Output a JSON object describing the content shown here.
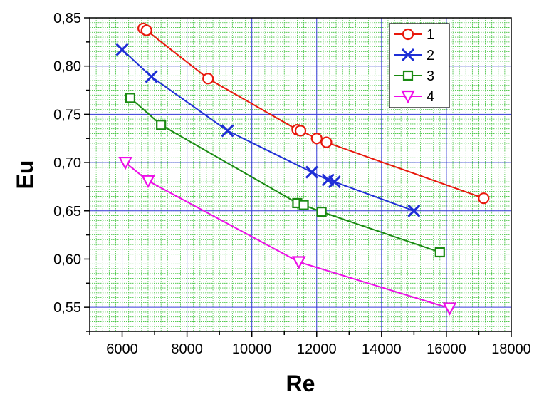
{
  "chart_data": {
    "type": "line",
    "xlabel": "Re",
    "ylabel": "Eu",
    "xlim": [
      5000,
      18000
    ],
    "ylim": [
      0.525,
      0.85
    ],
    "x_ticks": [
      6000,
      8000,
      10000,
      12000,
      14000,
      16000,
      18000
    ],
    "x_tick_labels": [
      "6000",
      "8000",
      "10000",
      "12000",
      "14000",
      "16000",
      "18000"
    ],
    "y_ticks": [
      0.55,
      0.6,
      0.65,
      0.7,
      0.75,
      0.8,
      0.85
    ],
    "y_tick_labels": [
      "0,55",
      "0,60",
      "0,65",
      "0,70",
      "0,75",
      "0,80",
      "0,85"
    ],
    "grid": true,
    "legend_position": "top-right",
    "series": [
      {
        "name": "1",
        "marker": "circle",
        "color": "#e8180c",
        "x": [
          6650,
          6750,
          8650,
          11400,
          11500,
          12000,
          12300,
          17150
        ],
        "y": [
          0.839,
          0.837,
          0.787,
          0.734,
          0.733,
          0.725,
          0.721,
          0.663
        ]
      },
      {
        "name": "2",
        "marker": "x",
        "color": "#1f2fd6",
        "x": [
          6000,
          6900,
          9250,
          11850,
          12350,
          12550,
          15000
        ],
        "y": [
          0.817,
          0.789,
          0.733,
          0.69,
          0.682,
          0.68,
          0.65
        ]
      },
      {
        "name": "3",
        "marker": "square",
        "color": "#1a8a12",
        "x": [
          6250,
          7200,
          11400,
          11600,
          12150,
          15800
        ],
        "y": [
          0.767,
          0.739,
          0.658,
          0.656,
          0.649,
          0.607
        ]
      },
      {
        "name": "4",
        "marker": "triangle-down",
        "color": "#ee0ee8",
        "x": [
          6100,
          6800,
          11450,
          16100
        ],
        "y": [
          0.7,
          0.681,
          0.597,
          0.549
        ]
      }
    ]
  }
}
